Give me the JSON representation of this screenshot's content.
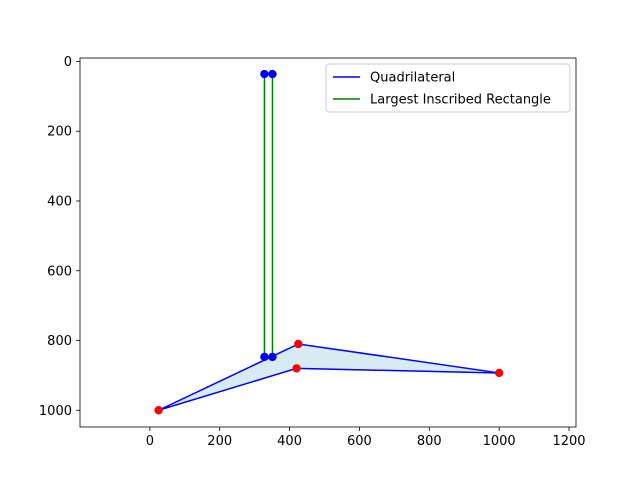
{
  "chart_data": {
    "type": "line",
    "title": "",
    "xlabel": "",
    "ylabel": "",
    "xlim": [
      -200,
      1220
    ],
    "ylim": [
      1048,
      -10
    ],
    "y_inverted": true,
    "grid": false,
    "legend_position": "top-right",
    "xticks": [
      0,
      200,
      400,
      600,
      800,
      1000,
      1200
    ],
    "yticks": [
      0,
      200,
      400,
      600,
      800,
      1000
    ],
    "series": [
      {
        "name": "Quadrilateral",
        "color": "#0000ff",
        "fill_color": "#add8e6",
        "x": [
          25,
          420,
          1000,
          425,
          25
        ],
        "y": [
          1000,
          880,
          893,
          810,
          1000
        ]
      },
      {
        "name": "Largest Inscribed Rectangle",
        "color": "#008000",
        "x": [
          328,
          351,
          351,
          328,
          328
        ],
        "y": [
          36,
          36,
          847,
          847,
          36
        ]
      }
    ],
    "markers": [
      {
        "group": "quadrilateral-vertices",
        "color": "#ff0000",
        "points": [
          [
            25,
            1000
          ],
          [
            420,
            880
          ],
          [
            1000,
            893
          ],
          [
            425,
            810
          ]
        ]
      },
      {
        "group": "rectangle-corners",
        "color": "#0000ff",
        "points": [
          [
            328,
            36
          ],
          [
            351,
            36
          ],
          [
            351,
            847
          ],
          [
            328,
            847
          ]
        ]
      }
    ]
  }
}
